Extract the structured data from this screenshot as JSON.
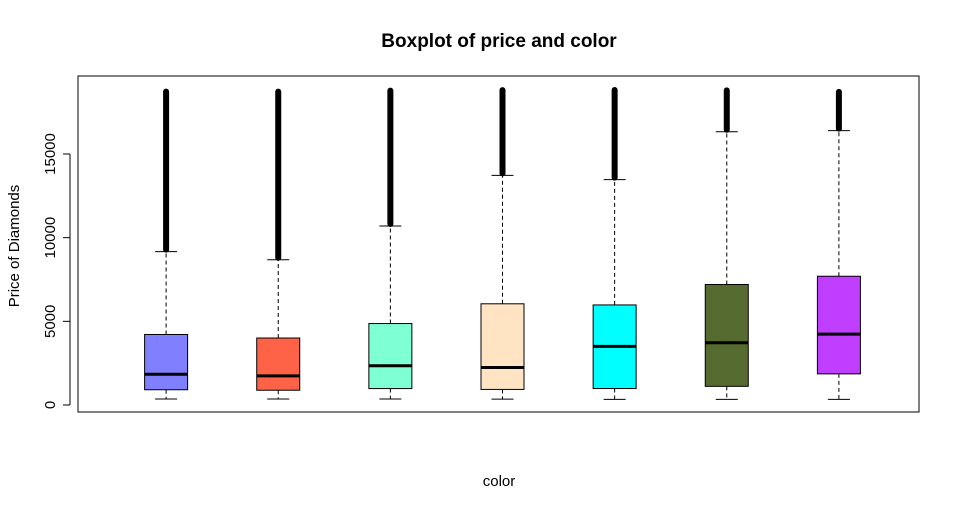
{
  "chart_data": {
    "type": "boxplot",
    "title": "Boxplot of price and color",
    "xlabel": "color",
    "ylabel": "Price of Diamonds",
    "ylim": [
      -100,
      19200
    ],
    "yticks": [
      0,
      5000,
      10000,
      15000
    ],
    "ytick_labels": [
      "0",
      "5000",
      "10000",
      "15000"
    ],
    "show_category_labels": false,
    "grid": false,
    "boxes": [
      {
        "color": "#8080FF",
        "min": 357,
        "q1": 911,
        "median": 1838,
        "q3": 4214,
        "upper_whisker": 9165,
        "outliers_from": 9165,
        "max": 18731
      },
      {
        "color": "#FF6347",
        "min": 357,
        "q1": 882,
        "median": 1739,
        "q3": 4003,
        "upper_whisker": 8680,
        "outliers_from": 8680,
        "max": 18731
      },
      {
        "color": "#7FFFD4",
        "min": 362,
        "q1": 982,
        "median": 2343,
        "q3": 4868,
        "upper_whisker": 10700,
        "outliers_from": 10700,
        "max": 18791
      },
      {
        "color": "#FFE4C4",
        "min": 354,
        "q1": 931,
        "median": 2242,
        "q3": 6048,
        "upper_whisker": 13720,
        "outliers_from": 13720,
        "max": 18818
      },
      {
        "color": "#00FFFF",
        "min": 337,
        "q1": 984,
        "median": 3503,
        "q3": 5980,
        "upper_whisker": 13470,
        "outliers_from": 13470,
        "max": 18823
      },
      {
        "color": "#556B2F",
        "min": 337,
        "q1": 1115,
        "median": 3720,
        "q3": 7202,
        "upper_whisker": 16330,
        "outliers_from": 16330,
        "max": 18803
      },
      {
        "color": "#BF3EFF",
        "min": 335,
        "q1": 1860,
        "median": 4234,
        "q3": 7695,
        "upper_whisker": 16400,
        "outliers_from": 16400,
        "max": 18710
      }
    ]
  }
}
